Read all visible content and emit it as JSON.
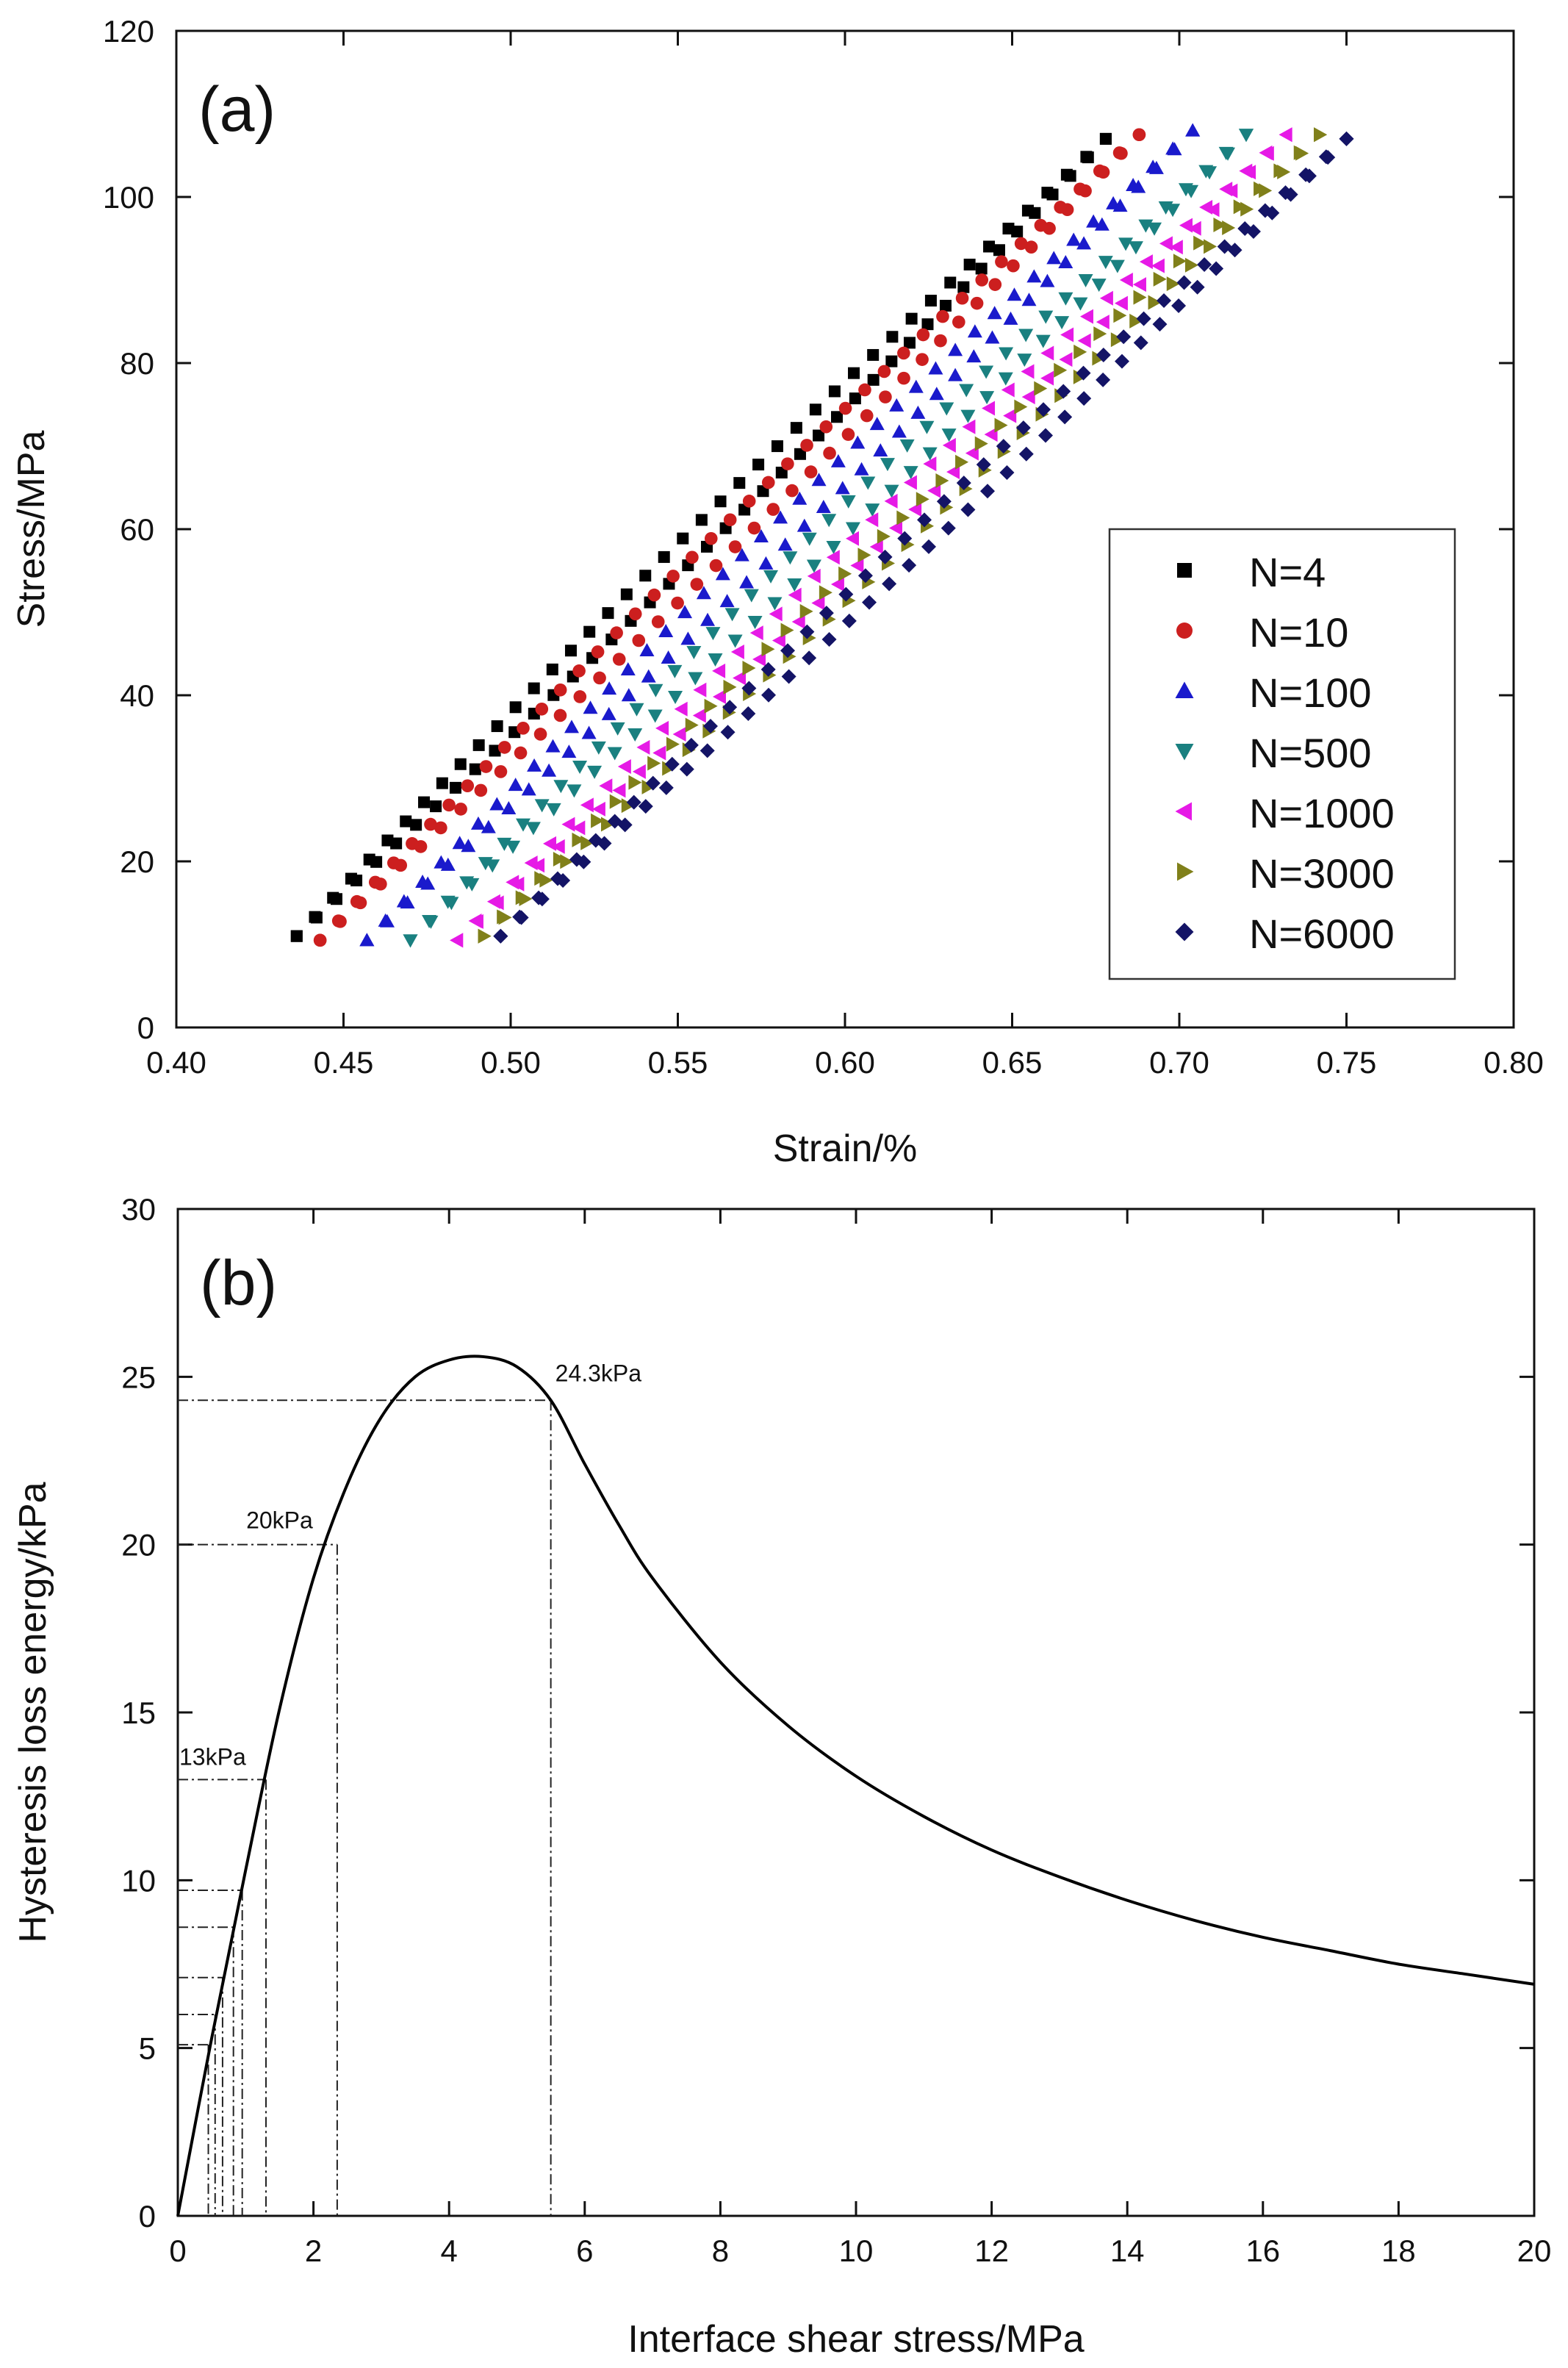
{
  "chart_data": [
    {
      "type": "scatter",
      "panel_label": "(a)",
      "xlabel": "Strain/%",
      "ylabel": "Stress/MPa",
      "xlim": [
        0.4,
        0.8
      ],
      "ylim": [
        0,
        120
      ],
      "xticks": [
        "0.40",
        "0.45",
        "0.50",
        "0.55",
        "0.60",
        "0.65",
        "0.70",
        "0.75",
        "0.80"
      ],
      "yticks": [
        "0",
        "20",
        "40",
        "60",
        "80",
        "100",
        "120"
      ],
      "legend_position": "bottom-right",
      "series": [
        {
          "name": "N=4",
          "marker": "square",
          "color": "#000000",
          "loading": {
            "x0": 0.436,
            "y0": 11,
            "x1": 0.678,
            "y1": 107
          },
          "unloading": {
            "x0": 0.436,
            "y0": 11,
            "x1": 0.678,
            "y1": 107
          }
        },
        {
          "name": "N=10",
          "marker": "circle",
          "color": "#cc1f1f",
          "loading": {
            "x0": 0.443,
            "y0": 10.5,
            "x1": 0.688,
            "y1": 107.5
          },
          "unloading": {
            "x0": 0.443,
            "y0": 10.5,
            "x1": 0.688,
            "y1": 107.5
          }
        },
        {
          "name": "N=100",
          "marker": "triangle-up",
          "color": "#1a1acc",
          "loading": {
            "x0": 0.457,
            "y0": 10.5,
            "x1": 0.704,
            "y1": 108
          },
          "unloading": {
            "x0": 0.457,
            "y0": 10.5,
            "x1": 0.704,
            "y1": 108
          }
        },
        {
          "name": "N=500",
          "marker": "triangle-down",
          "color": "#1a8080",
          "loading": {
            "x0": 0.47,
            "y0": 10.5,
            "x1": 0.72,
            "y1": 107.5
          },
          "unloading": {
            "x0": 0.47,
            "y0": 10.5,
            "x1": 0.72,
            "y1": 107.5
          }
        },
        {
          "name": "N=1000",
          "marker": "triangle-left",
          "color": "#e61ae6",
          "loading": {
            "x0": 0.484,
            "y0": 10.5,
            "x1": 0.732,
            "y1": 107.5
          },
          "unloading": {
            "x0": 0.484,
            "y0": 10.5,
            "x1": 0.732,
            "y1": 107.5
          }
        },
        {
          "name": "N=3000",
          "marker": "triangle-right",
          "color": "#80801a",
          "loading": {
            "x0": 0.492,
            "y0": 11,
            "x1": 0.742,
            "y1": 107.5
          },
          "unloading": {
            "x0": 0.492,
            "y0": 11,
            "x1": 0.742,
            "y1": 107.5
          }
        },
        {
          "name": "N=6000",
          "marker": "diamond",
          "color": "#141466",
          "loading": {
            "x0": 0.497,
            "y0": 11,
            "x1": 0.75,
            "y1": 107
          },
          "unloading": {
            "x0": 0.497,
            "y0": 11,
            "x1": 0.75,
            "y1": 107
          }
        }
      ]
    },
    {
      "type": "line",
      "panel_label": "(b)",
      "xlabel": "Interface shear stress/MPa",
      "ylabel": "Hysteresis loss energy/kPa",
      "xlim": [
        0,
        20
      ],
      "ylim": [
        0,
        30
      ],
      "xticks": [
        "0",
        "2",
        "4",
        "6",
        "8",
        "10",
        "12",
        "14",
        "16",
        "18",
        "20"
      ],
      "yticks": [
        "0",
        "5",
        "10",
        "15",
        "20",
        "25",
        "30"
      ],
      "curve": {
        "x": [
          0,
          0.5,
          1.0,
          1.5,
          2.0,
          2.5,
          3.0,
          3.5,
          4.0,
          4.5,
          5.0,
          5.5,
          6.0,
          6.5,
          7.0,
          8.0,
          9.0,
          10.0,
          11.0,
          12.0,
          13.0,
          14.0,
          15.0,
          16.0,
          17.0,
          18.0,
          19.0,
          20.0
        ],
        "y": [
          0,
          5.3,
          10.3,
          15.1,
          19.0,
          21.8,
          23.8,
          25.0,
          25.5,
          25.6,
          25.3,
          24.3,
          22.4,
          20.6,
          19.0,
          16.5,
          14.6,
          13.1,
          11.9,
          10.9,
          10.1,
          9.4,
          8.8,
          8.3,
          7.9,
          7.5,
          7.2,
          6.9
        ]
      },
      "reference_lines": [
        {
          "x": 5.5,
          "y": 24.3,
          "label": "24.3kPa"
        },
        {
          "x": 2.35,
          "y": 20.0,
          "label": "20kPa"
        },
        {
          "x": 1.3,
          "y": 13.0,
          "label": "13kPa"
        },
        {
          "x": 0.95,
          "y": 9.7,
          "label": ""
        },
        {
          "x": 0.82,
          "y": 8.6,
          "label": ""
        },
        {
          "x": 0.66,
          "y": 7.1,
          "label": ""
        },
        {
          "x": 0.55,
          "y": 6.0,
          "label": ""
        },
        {
          "x": 0.45,
          "y": 5.1,
          "label": ""
        }
      ]
    }
  ]
}
